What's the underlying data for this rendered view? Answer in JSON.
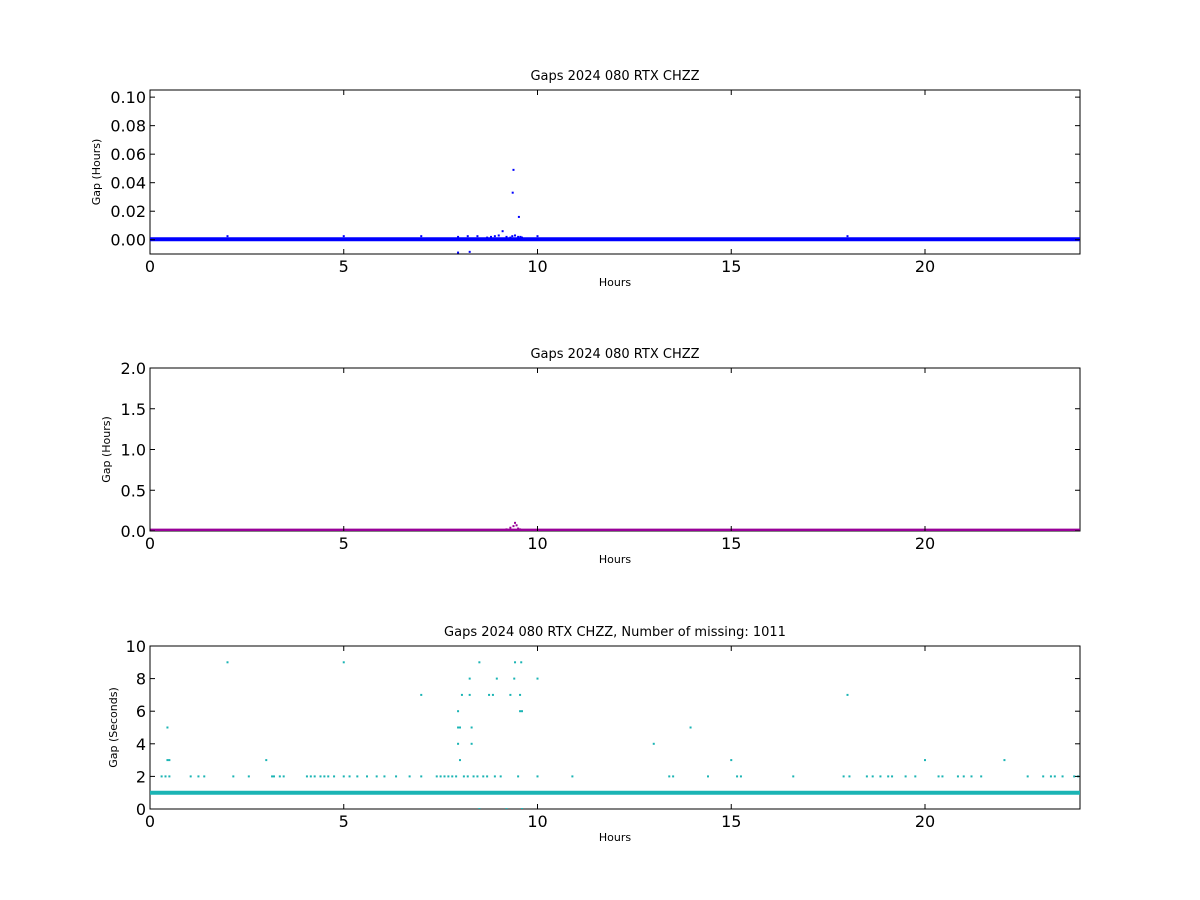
{
  "chart_data": [
    {
      "type": "scatter",
      "title": "Gaps 2024 080 RTX  CHZZ",
      "xlabel": "Hours",
      "ylabel": "Gap (Hours)",
      "xlim": [
        0,
        24
      ],
      "ylim": [
        -0.01,
        0.105
      ],
      "xticks": [
        0,
        5,
        10,
        15,
        20
      ],
      "yticks": [
        0.0,
        0.02,
        0.04,
        0.06,
        0.08,
        0.1
      ],
      "ytick_labels": [
        "0.00",
        "0.02",
        "0.04",
        "0.06",
        "0.08",
        "0.10"
      ],
      "color": "#0000ff",
      "baseline_y": 0.0003,
      "baseline_x_range": [
        0,
        24
      ],
      "points": [
        [
          2.0,
          0.0025
        ],
        [
          5.0,
          0.0025
        ],
        [
          7.0,
          0.0025
        ],
        [
          7.95,
          0.002
        ],
        [
          8.2,
          0.0025
        ],
        [
          8.45,
          0.0025
        ],
        [
          8.7,
          0.0015
        ],
        [
          8.8,
          0.002
        ],
        [
          8.9,
          0.0025
        ],
        [
          9.0,
          0.003
        ],
        [
          9.1,
          0.006
        ],
        [
          9.2,
          0.002
        ],
        [
          9.3,
          0.0015
        ],
        [
          9.38,
          0.049
        ],
        [
          9.36,
          0.033
        ],
        [
          9.42,
          0.003
        ],
        [
          9.5,
          0.002
        ],
        [
          9.52,
          0.016
        ],
        [
          9.56,
          0.002
        ],
        [
          9.6,
          0.0015
        ],
        [
          10.0,
          0.0025
        ],
        [
          18.0,
          0.0025
        ],
        [
          7.95,
          -0.009
        ],
        [
          8.25,
          -0.0085
        ],
        [
          9.35,
          0.0025
        ]
      ]
    },
    {
      "type": "scatter",
      "title": "Gaps 2024 080 RTX  CHZZ",
      "xlabel": "Hours",
      "ylabel": "Gap (Hours)",
      "xlim": [
        0,
        24
      ],
      "ylim": [
        0,
        2.0
      ],
      "xticks": [
        0,
        5,
        10,
        15,
        20
      ],
      "yticks": [
        0.0,
        0.5,
        1.0,
        1.5,
        2.0
      ],
      "ytick_labels": [
        "0.0",
        "0.5",
        "1.0",
        "1.5",
        "2.0"
      ],
      "color": "#990099",
      "baseline_y": 0.005,
      "baseline_x_range": [
        0,
        24
      ],
      "points": [
        [
          9.2,
          0.02
        ],
        [
          9.3,
          0.04
        ],
        [
          9.38,
          0.06
        ],
        [
          9.42,
          0.1
        ],
        [
          9.46,
          0.07
        ],
        [
          9.5,
          0.03
        ],
        [
          9.55,
          0.02
        ]
      ]
    },
    {
      "type": "scatter",
      "title": "Gaps 2024 080 RTX  CHZZ, Number of missing: 1011",
      "xlabel": "Hours",
      "ylabel": "Gap (Seconds)",
      "xlim": [
        0,
        24
      ],
      "ylim": [
        0,
        10
      ],
      "xticks": [
        0,
        5,
        10,
        15,
        20
      ],
      "yticks": [
        0,
        2,
        4,
        6,
        8,
        10
      ],
      "ytick_labels": [
        "0",
        "2",
        "4",
        "6",
        "8",
        "10"
      ],
      "color": "#1ab4b4",
      "baseline_y": 1,
      "baseline_x_range": [
        0,
        24
      ],
      "points": [
        [
          0.3,
          2
        ],
        [
          0.4,
          2
        ],
        [
          0.45,
          3
        ],
        [
          0.45,
          5
        ],
        [
          0.5,
          2
        ],
        [
          0.5,
          3
        ],
        [
          1.05,
          2
        ],
        [
          1.25,
          2
        ],
        [
          1.4,
          2
        ],
        [
          2.0,
          9
        ],
        [
          2.15,
          2
        ],
        [
          2.55,
          2
        ],
        [
          3.0,
          3
        ],
        [
          3.15,
          2
        ],
        [
          3.2,
          2
        ],
        [
          3.35,
          2
        ],
        [
          3.45,
          2
        ],
        [
          4.05,
          2
        ],
        [
          4.15,
          2
        ],
        [
          4.25,
          2
        ],
        [
          4.4,
          2
        ],
        [
          4.5,
          2
        ],
        [
          4.6,
          2
        ],
        [
          4.75,
          2
        ],
        [
          5.0,
          9
        ],
        [
          5.0,
          2
        ],
        [
          5.15,
          2
        ],
        [
          5.35,
          2
        ],
        [
          5.6,
          2
        ],
        [
          5.85,
          2
        ],
        [
          6.05,
          2
        ],
        [
          6.35,
          2
        ],
        [
          6.7,
          2
        ],
        [
          7.0,
          7
        ],
        [
          7.0,
          2
        ],
        [
          7.4,
          2
        ],
        [
          7.5,
          2
        ],
        [
          7.6,
          2
        ],
        [
          7.7,
          2
        ],
        [
          7.8,
          2
        ],
        [
          7.9,
          2
        ],
        [
          7.95,
          4
        ],
        [
          7.95,
          5
        ],
        [
          7.95,
          6
        ],
        [
          8.0,
          3
        ],
        [
          8.0,
          5
        ],
        [
          8.05,
          7
        ],
        [
          8.1,
          2
        ],
        [
          8.2,
          2
        ],
        [
          8.25,
          7
        ],
        [
          8.25,
          8
        ],
        [
          8.3,
          5
        ],
        [
          8.3,
          4
        ],
        [
          8.35,
          2
        ],
        [
          8.45,
          2
        ],
        [
          8.5,
          9
        ],
        [
          8.5,
          0
        ],
        [
          8.6,
          2
        ],
        [
          8.7,
          2
        ],
        [
          8.75,
          7
        ],
        [
          8.85,
          7
        ],
        [
          8.9,
          2
        ],
        [
          8.95,
          8
        ],
        [
          9.05,
          2
        ],
        [
          9.2,
          0
        ],
        [
          9.3,
          7
        ],
        [
          9.4,
          8
        ],
        [
          9.42,
          9
        ],
        [
          9.5,
          2
        ],
        [
          9.55,
          7
        ],
        [
          9.55,
          6
        ],
        [
          9.58,
          9
        ],
        [
          9.6,
          6
        ],
        [
          9.6,
          0
        ],
        [
          10.0,
          8
        ],
        [
          10.0,
          2
        ],
        [
          10.9,
          2
        ],
        [
          13.0,
          4
        ],
        [
          13.4,
          2
        ],
        [
          13.5,
          2
        ],
        [
          13.95,
          5
        ],
        [
          14.4,
          2
        ],
        [
          15.0,
          3
        ],
        [
          15.15,
          2
        ],
        [
          15.25,
          2
        ],
        [
          16.6,
          2
        ],
        [
          17.9,
          2
        ],
        [
          18.0,
          7
        ],
        [
          18.05,
          2
        ],
        [
          18.5,
          2
        ],
        [
          18.65,
          2
        ],
        [
          18.85,
          2
        ],
        [
          19.05,
          2
        ],
        [
          19.15,
          2
        ],
        [
          19.5,
          2
        ],
        [
          19.75,
          2
        ],
        [
          20.0,
          3
        ],
        [
          20.35,
          2
        ],
        [
          20.45,
          2
        ],
        [
          20.85,
          2
        ],
        [
          21.0,
          2
        ],
        [
          21.2,
          2
        ],
        [
          21.45,
          2
        ],
        [
          22.05,
          3
        ],
        [
          22.65,
          2
        ],
        [
          23.05,
          2
        ],
        [
          23.25,
          2
        ],
        [
          23.35,
          2
        ],
        [
          23.55,
          2
        ],
        [
          23.85,
          2
        ],
        [
          23.95,
          2
        ]
      ]
    }
  ]
}
